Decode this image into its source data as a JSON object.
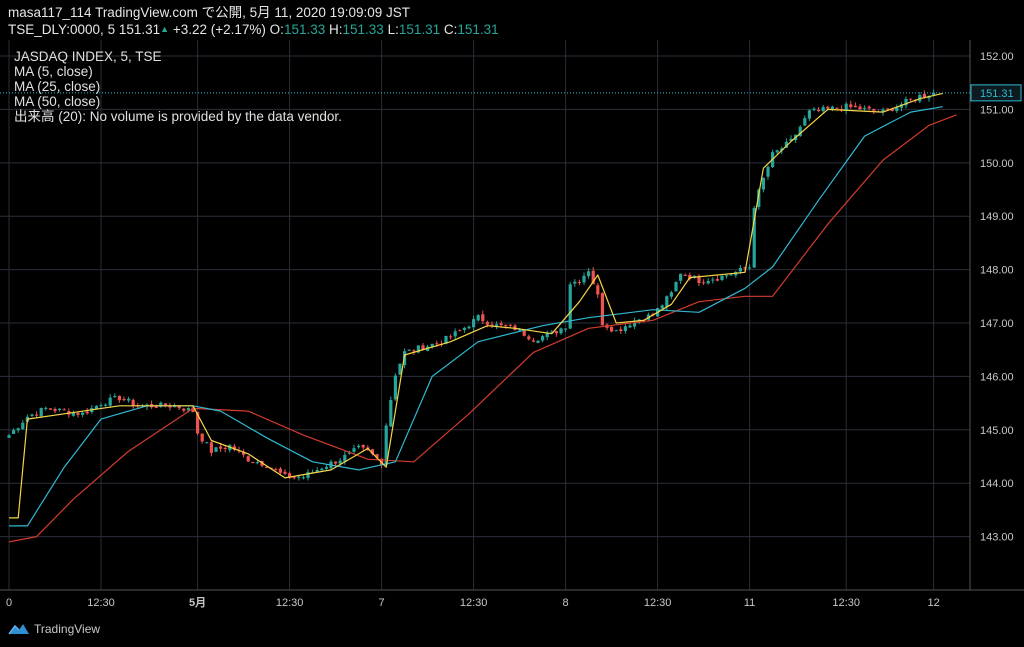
{
  "header": {
    "line1": "masa117_114 TradingView.com で公開, 5月 11, 2020 19:09:09 JST",
    "symbol": "TSE_DLY:0000, 5",
    "last": "151.31",
    "change": "+3.22 (+2.17%)",
    "o_label": "O:",
    "o_value": "151.33",
    "h_label": "H:",
    "h_value": "151.33",
    "l_label": "L:",
    "l_value": "151.31",
    "c_label": "C:",
    "c_value": "151.31"
  },
  "legend": {
    "title": "JASDAQ INDEX, 5, TSE",
    "ma5": "MA (5, close)",
    "ma25": "MA (25, close)",
    "ma50": "MA (50, close)",
    "volume": "出来高 (20): No volume is provided by the data vendor."
  },
  "footer": {
    "brand": "TradingView"
  },
  "colors": {
    "up": "#26a69a",
    "down": "#ef5350",
    "ma5": "#f5d547",
    "ma25": "#2fb9d2",
    "ma50": "#d23b2e",
    "grid": "#2a2e39",
    "price_line": "#2fb9d2"
  },
  "chart_data": {
    "type": "candlestick",
    "ylim": [
      142.0,
      152.3
    ],
    "y_ticks": [
      "152.00",
      "151.00",
      "150.00",
      "149.00",
      "148.00",
      "147.00",
      "146.00",
      "145.00",
      "144.00",
      "143.00"
    ],
    "x_ticks": [
      "0",
      "12:30",
      "5月",
      "12:30",
      "7",
      "12:30",
      "8",
      "12:30",
      "11",
      "12:30",
      "12"
    ],
    "last_price_label": "151.31",
    "anchors": [
      {
        "i": 0,
        "c": 144.9
      },
      {
        "i": 4,
        "c": 145.25
      },
      {
        "i": 8,
        "c": 145.4
      },
      {
        "i": 12,
        "c": 145.35
      },
      {
        "i": 16,
        "c": 145.3
      },
      {
        "i": 20,
        "c": 145.5
      },
      {
        "i": 24,
        "c": 145.6
      },
      {
        "i": 28,
        "c": 145.45
      },
      {
        "i": 32,
        "c": 145.45
      },
      {
        "i": 36,
        "c": 145.45
      },
      {
        "i": 40,
        "c": 145.35
      },
      {
        "i": 41,
        "c": 144.95
      },
      {
        "i": 44,
        "c": 144.6
      },
      {
        "i": 48,
        "c": 144.7
      },
      {
        "i": 52,
        "c": 144.45
      },
      {
        "i": 56,
        "c": 144.35
      },
      {
        "i": 60,
        "c": 144.12
      },
      {
        "i": 64,
        "c": 144.12
      },
      {
        "i": 68,
        "c": 144.3
      },
      {
        "i": 72,
        "c": 144.45
      },
      {
        "i": 76,
        "c": 144.65
      },
      {
        "i": 78,
        "c": 144.6
      },
      {
        "i": 81,
        "c": 144.4
      },
      {
        "i": 82,
        "c": 145.1
      },
      {
        "i": 84,
        "c": 146.05
      },
      {
        "i": 86,
        "c": 146.45
      },
      {
        "i": 90,
        "c": 146.55
      },
      {
        "i": 94,
        "c": 146.65
      },
      {
        "i": 98,
        "c": 146.85
      },
      {
        "i": 102,
        "c": 147.1
      },
      {
        "i": 106,
        "c": 146.95
      },
      {
        "i": 110,
        "c": 146.9
      },
      {
        "i": 114,
        "c": 146.7
      },
      {
        "i": 118,
        "c": 146.8
      },
      {
        "i": 121,
        "c": 146.95
      },
      {
        "i": 122,
        "c": 147.75
      },
      {
        "i": 124,
        "c": 147.8
      },
      {
        "i": 126,
        "c": 148.0
      },
      {
        "i": 128,
        "c": 147.5
      },
      {
        "i": 129,
        "c": 147.0
      },
      {
        "i": 132,
        "c": 146.85
      },
      {
        "i": 136,
        "c": 147.05
      },
      {
        "i": 140,
        "c": 147.15
      },
      {
        "i": 144,
        "c": 147.55
      },
      {
        "i": 146,
        "c": 147.95
      },
      {
        "i": 150,
        "c": 147.8
      },
      {
        "i": 154,
        "c": 147.85
      },
      {
        "i": 158,
        "c": 147.95
      },
      {
        "i": 161,
        "c": 148.05
      },
      {
        "i": 162,
        "c": 149.2
      },
      {
        "i": 164,
        "c": 149.7
      },
      {
        "i": 166,
        "c": 150.15
      },
      {
        "i": 170,
        "c": 150.4
      },
      {
        "i": 174,
        "c": 150.95
      },
      {
        "i": 178,
        "c": 151.0
      },
      {
        "i": 182,
        "c": 151.05
      },
      {
        "i": 186,
        "c": 151.0
      },
      {
        "i": 190,
        "c": 150.95
      },
      {
        "i": 194,
        "c": 151.1
      },
      {
        "i": 198,
        "c": 151.25
      },
      {
        "i": 201,
        "c": 151.31
      }
    ],
    "ma5_points": [
      [
        0,
        143.35
      ],
      [
        2,
        143.35
      ],
      [
        4,
        145.2
      ],
      [
        12,
        145.3
      ],
      [
        24,
        145.45
      ],
      [
        40,
        145.45
      ],
      [
        44,
        144.8
      ],
      [
        52,
        144.55
      ],
      [
        60,
        144.1
      ],
      [
        70,
        144.25
      ],
      [
        78,
        144.65
      ],
      [
        82,
        144.3
      ],
      [
        86,
        146.4
      ],
      [
        96,
        146.65
      ],
      [
        104,
        146.95
      ],
      [
        110,
        146.9
      ],
      [
        118,
        146.8
      ],
      [
        124,
        147.4
      ],
      [
        128,
        147.9
      ],
      [
        132,
        147.0
      ],
      [
        138,
        147.05
      ],
      [
        144,
        147.35
      ],
      [
        148,
        147.85
      ],
      [
        160,
        147.95
      ],
      [
        164,
        149.9
      ],
      [
        170,
        150.4
      ],
      [
        178,
        151.0
      ],
      [
        190,
        150.95
      ],
      [
        198,
        151.2
      ],
      [
        203,
        151.3
      ]
    ],
    "ma25_points": [
      [
        0,
        143.2
      ],
      [
        4,
        143.2
      ],
      [
        12,
        144.3
      ],
      [
        20,
        145.2
      ],
      [
        30,
        145.45
      ],
      [
        40,
        145.45
      ],
      [
        46,
        145.35
      ],
      [
        56,
        144.85
      ],
      [
        66,
        144.4
      ],
      [
        76,
        144.25
      ],
      [
        84,
        144.4
      ],
      [
        92,
        146.0
      ],
      [
        102,
        146.65
      ],
      [
        116,
        146.95
      ],
      [
        126,
        147.1
      ],
      [
        140,
        147.25
      ],
      [
        150,
        147.2
      ],
      [
        160,
        147.65
      ],
      [
        166,
        148.05
      ],
      [
        176,
        149.3
      ],
      [
        186,
        150.5
      ],
      [
        196,
        150.95
      ],
      [
        203,
        151.05
      ]
    ],
    "ma50_points": [
      [
        0,
        142.9
      ],
      [
        6,
        143.0
      ],
      [
        14,
        143.7
      ],
      [
        26,
        144.6
      ],
      [
        40,
        145.4
      ],
      [
        52,
        145.35
      ],
      [
        64,
        144.9
      ],
      [
        78,
        144.45
      ],
      [
        88,
        144.4
      ],
      [
        100,
        145.3
      ],
      [
        114,
        146.45
      ],
      [
        126,
        146.9
      ],
      [
        140,
        147.05
      ],
      [
        150,
        147.4
      ],
      [
        160,
        147.5
      ],
      [
        166,
        147.5
      ],
      [
        178,
        148.85
      ],
      [
        190,
        150.05
      ],
      [
        200,
        150.7
      ],
      [
        206,
        150.9
      ]
    ]
  }
}
